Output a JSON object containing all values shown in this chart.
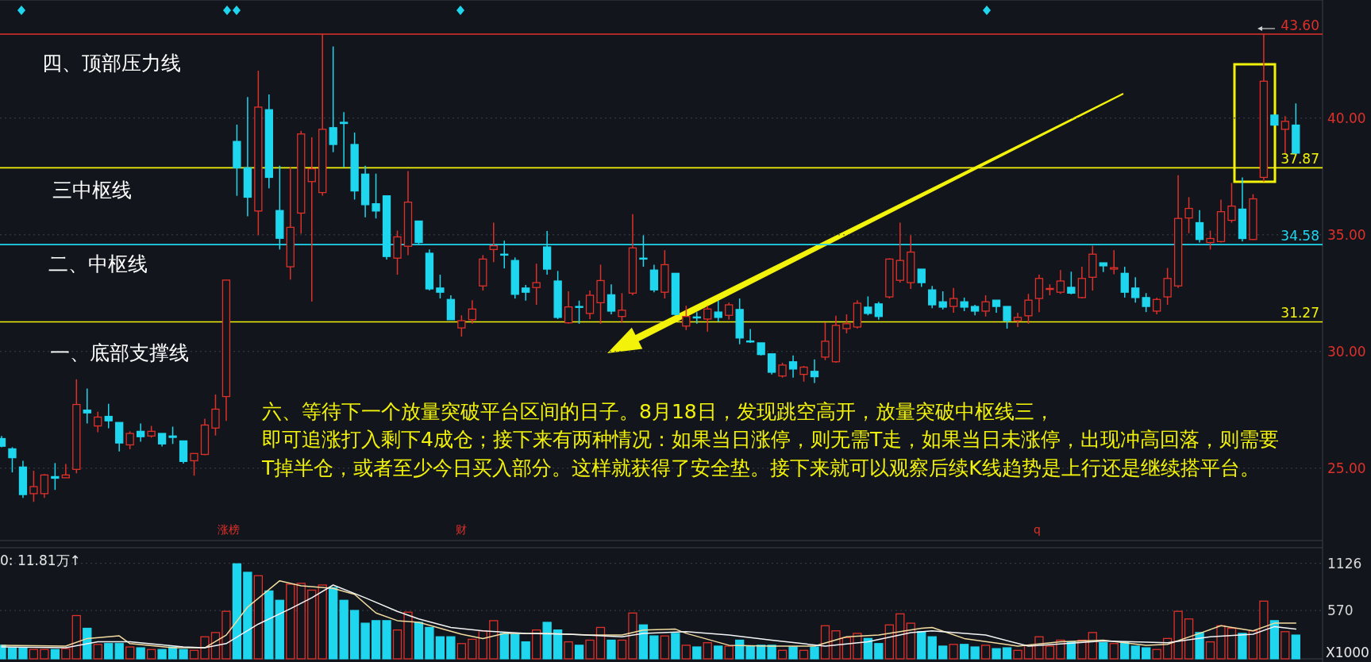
{
  "chart_data": [
    {
      "type": "candlestick",
      "categories": [
        null,
        null,
        null,
        null,
        null,
        null,
        null,
        null,
        null,
        null,
        null,
        null,
        null,
        null,
        null,
        null,
        null,
        null,
        null,
        null,
        null,
        null,
        null,
        null,
        null,
        null,
        null,
        null,
        null,
        null,
        null,
        null,
        null,
        null,
        null,
        null,
        null,
        null,
        null,
        null,
        null,
        null,
        null,
        null,
        null,
        null,
        null,
        null,
        null,
        null,
        null,
        null,
        null,
        null,
        null,
        null,
        null,
        null,
        null,
        null,
        null,
        null,
        null,
        null,
        null,
        null,
        null,
        null,
        null,
        null,
        null,
        null,
        null,
        null,
        null,
        null,
        null,
        null,
        null,
        null,
        null,
        null,
        null,
        null,
        null,
        null,
        null,
        null,
        null,
        null,
        null,
        null,
        null,
        null,
        null,
        null,
        null,
        null,
        null,
        null,
        null,
        null,
        null,
        null,
        null,
        null,
        null,
        null,
        null,
        null,
        null,
        null,
        null,
        null,
        null,
        null,
        null,
        null,
        null,
        null,
        null,
        null
      ],
      "ohlc": [
        [
          26.27,
          26.38,
          25.9,
          25.94
        ],
        [
          25.83,
          25.9,
          24.82,
          25.45
        ],
        [
          25.05,
          25.32,
          23.73,
          23.87
        ],
        [
          23.91,
          24.89,
          23.56,
          24.21
        ],
        [
          23.91,
          24.75,
          23.73,
          24.71
        ],
        [
          24.64,
          25.22,
          24.07,
          24.57
        ],
        [
          24.59,
          25.18,
          24.59,
          24.71
        ],
        [
          24.95,
          28.81,
          24.78,
          27.73
        ],
        [
          27.49,
          28.41,
          26.92,
          27.37
        ],
        [
          26.81,
          27.42,
          26.54,
          27.19
        ],
        [
          27.22,
          27.76,
          26.71,
          27.03
        ],
        [
          26.96,
          26.96,
          25.72,
          26.08
        ],
        [
          26.0,
          26.58,
          25.81,
          26.49
        ],
        [
          26.58,
          26.92,
          26.13,
          26.35
        ],
        [
          26.38,
          26.81,
          26.31,
          26.58
        ],
        [
          26.49,
          26.49,
          25.93,
          26.04
        ],
        [
          26.38,
          26.78,
          26.04,
          26.32
        ],
        [
          26.17,
          26.17,
          25.2,
          25.29
        ],
        [
          25.32,
          25.63,
          24.68,
          25.63
        ],
        [
          25.59,
          27.12,
          25.56,
          26.85
        ],
        [
          26.72,
          28.16,
          26.4,
          27.53
        ],
        [
          28.07,
          33.06,
          27.03,
          33.06
        ],
        [
          39.0,
          39.72,
          36.67,
          37.87
        ],
        [
          37.87,
          40.9,
          35.79,
          36.61
        ],
        [
          36.02,
          42.03,
          34.98,
          40.47
        ],
        [
          40.36,
          41.01,
          36.99,
          37.46
        ],
        [
          36.04,
          37.96,
          34.37,
          34.85
        ],
        [
          33.63,
          37.9,
          33.08,
          35.32
        ],
        [
          35.93,
          39.45,
          35.05,
          39.32
        ],
        [
          37.28,
          39.18,
          32.14,
          37.83
        ],
        [
          36.81,
          43.6,
          36.68,
          39.52
        ],
        [
          39.59,
          43.07,
          38.54,
          38.87
        ],
        [
          39.82,
          40.26,
          37.89,
          39.77
        ],
        [
          38.87,
          39.38,
          36.51,
          36.88
        ],
        [
          37.6,
          37.96,
          35.75,
          36.29
        ],
        [
          36.33,
          37.62,
          35.7,
          36.02
        ],
        [
          36.67,
          36.67,
          33.94,
          34.07
        ],
        [
          34.0,
          35.18,
          33.29,
          34.91
        ],
        [
          34.51,
          37.73,
          34.13,
          36.4
        ],
        [
          35.59,
          35.59,
          34.6,
          34.67
        ],
        [
          34.21,
          34.37,
          32.61,
          32.68
        ],
        [
          32.72,
          33.29,
          32.27,
          32.54
        ],
        [
          32.23,
          32.41,
          31.36,
          31.36
        ],
        [
          31.01,
          31.55,
          30.64,
          31.32
        ],
        [
          31.36,
          32.2,
          31.19,
          31.82
        ],
        [
          32.81,
          34.13,
          32.61,
          33.96
        ],
        [
          34.37,
          35.52,
          33.83,
          34.53
        ],
        [
          34.17,
          34.75,
          33.56,
          34.15
        ],
        [
          33.9,
          34.03,
          32.27,
          32.45
        ],
        [
          32.72,
          32.85,
          32.18,
          32.54
        ],
        [
          32.74,
          33.76,
          32.0,
          32.95
        ],
        [
          34.48,
          35.16,
          33.29,
          33.53
        ],
        [
          33.02,
          33.45,
          31.39,
          31.46
        ],
        [
          31.23,
          32.58,
          31.19,
          31.91
        ],
        [
          31.93,
          32.18,
          31.19,
          31.9
        ],
        [
          31.63,
          32.61,
          31.39,
          32.41
        ],
        [
          32.09,
          33.72,
          31.19,
          33.04
        ],
        [
          32.43,
          32.88,
          31.59,
          31.73
        ],
        [
          31.5,
          32.5,
          31.23,
          31.77
        ],
        [
          32.5,
          35.89,
          32.41,
          34.44
        ],
        [
          34.0,
          34.98,
          33.63,
          33.97
        ],
        [
          33.49,
          33.72,
          32.54,
          32.64
        ],
        [
          32.54,
          34.34,
          32.27,
          33.72
        ],
        [
          33.35,
          33.35,
          31.55,
          31.59
        ],
        [
          31.09,
          31.96,
          30.92,
          31.5
        ],
        [
          31.48,
          31.69,
          31.19,
          31.46
        ],
        [
          31.39,
          31.96,
          30.85,
          31.82
        ],
        [
          31.69,
          32.18,
          31.28,
          31.46
        ],
        [
          31.55,
          32.09,
          31.36,
          32.0
        ],
        [
          31.8,
          32.27,
          30.31,
          30.58
        ],
        [
          30.45,
          30.96,
          30.37,
          30.43
        ],
        [
          30.37,
          30.37,
          29.83,
          29.87
        ],
        [
          29.9,
          29.9,
          29.02,
          29.11
        ],
        [
          28.95,
          29.52,
          28.88,
          29.42
        ],
        [
          29.56,
          29.83,
          28.88,
          29.25
        ],
        [
          29.02,
          29.38,
          28.71,
          29.33
        ],
        [
          29.15,
          29.66,
          28.65,
          28.92
        ],
        [
          29.76,
          31.25,
          29.63,
          30.44
        ],
        [
          29.56,
          31.53,
          29.52,
          31.12
        ],
        [
          30.98,
          31.59,
          30.78,
          31.19
        ],
        [
          31.05,
          32.2,
          30.98,
          32.07
        ],
        [
          31.9,
          32.36,
          31.55,
          31.63
        ],
        [
          32.04,
          32.13,
          31.36,
          31.5
        ],
        [
          32.34,
          33.99,
          32.27,
          33.96
        ],
        [
          33.05,
          35.52,
          32.95,
          33.9
        ],
        [
          32.95,
          34.98,
          32.68,
          34.26
        ],
        [
          33.53,
          33.53,
          32.77,
          32.95
        ],
        [
          32.64,
          32.81,
          31.86,
          32.0
        ],
        [
          32.13,
          32.58,
          31.8,
          31.9
        ],
        [
          31.93,
          32.72,
          31.66,
          32.27
        ],
        [
          32.13,
          32.31,
          31.73,
          31.9
        ],
        [
          31.93,
          32.0,
          31.55,
          31.73
        ],
        [
          31.73,
          32.41,
          31.5,
          32.13
        ],
        [
          32.2,
          32.2,
          31.66,
          31.93
        ],
        [
          31.93,
          31.93,
          30.98,
          31.32
        ],
        [
          31.32,
          31.66,
          31.05,
          31.46
        ],
        [
          31.53,
          32.47,
          31.19,
          32.2
        ],
        [
          32.27,
          33.29,
          31.69,
          33.13
        ],
        [
          32.68,
          32.88,
          32.41,
          32.7
        ],
        [
          32.54,
          33.49,
          32.47,
          33.02
        ],
        [
          32.75,
          33.42,
          32.45,
          32.5
        ],
        [
          32.31,
          33.63,
          32.27,
          33.13
        ],
        [
          33.18,
          34.53,
          32.61,
          34.17
        ],
        [
          33.8,
          33.8,
          33.4,
          33.67
        ],
        [
          33.53,
          34.34,
          33.31,
          33.59
        ],
        [
          33.35,
          33.63,
          32.31,
          32.54
        ],
        [
          32.72,
          33.18,
          32.09,
          32.31
        ],
        [
          32.31,
          32.5,
          31.69,
          31.93
        ],
        [
          31.73,
          32.31,
          31.59,
          32.23
        ],
        [
          32.34,
          33.58,
          32.0,
          33.13
        ],
        [
          32.81,
          37.55,
          32.72,
          35.7
        ],
        [
          35.72,
          36.61,
          35.07,
          36.13
        ],
        [
          35.52,
          36.06,
          34.67,
          34.8
        ],
        [
          34.67,
          35.18,
          34.37,
          34.84
        ],
        [
          34.71,
          36.51,
          34.67,
          35.99
        ],
        [
          35.62,
          37.22,
          35.52,
          36.23
        ],
        [
          36.1,
          37.46,
          34.71,
          34.84
        ],
        [
          34.8,
          36.74,
          34.78,
          36.54
        ],
        [
          37.46,
          43.6,
          37.28,
          41.58
        ],
        [
          40.13,
          40.13,
          39.7,
          39.7
        ],
        [
          39.52,
          40.09,
          38.5,
          39.86
        ],
        [
          39.7,
          40.63,
          38.46,
          38.5
        ]
      ],
      "ylim": [
        21.9,
        45.06
      ],
      "yticks": [
        {
          "value": 25,
          "label": "25.00"
        },
        {
          "value": 30,
          "label": "30.00"
        },
        {
          "value": 35,
          "label": "35.00"
        },
        {
          "value": 40,
          "label": "40.00"
        }
      ],
      "grid": "y",
      "tick_labels": "y",
      "ref_lines": [
        {
          "axis": "y",
          "value": 43.6,
          "label": "43.60",
          "color": "#e0302a"
        },
        {
          "axis": "y",
          "value": 37.87,
          "label": "37.87",
          "color": "#f2f20a"
        },
        {
          "axis": "y",
          "value": 34.58,
          "label": "34.58",
          "color": "#1fd6ef"
        },
        {
          "axis": "y",
          "value": 31.27,
          "label": "31.27",
          "color": "#f2f20a"
        }
      ],
      "annotations": [
        "四、顶部压力线",
        "三中枢线",
        "二、中枢线",
        "一、底部支撑线",
        "六、等待下一个放量突破平台区间的日子。8月18日，发现跳空高开，放量突破中枢线三，",
        "即可追涨打入剩下4成仓；接下来有两种情况：如果当日涨停，则无需T走，如果当日未涨停，出现冲高回落，则需要",
        "T掉半仓，或者至少今日买入部分。这样就获得了安全垫。接下来就可以观察后续K线趋势是上行还是继续搭平台。",
        "涨榜",
        "财",
        "q"
      ]
    },
    {
      "type": "bar",
      "title": "0: 11.81万↑",
      "ylabel": "X1000",
      "categories": [
        null,
        null,
        null,
        null,
        null,
        null,
        null,
        null,
        null,
        null,
        null,
        null,
        null,
        null,
        null,
        null,
        null,
        null,
        null,
        null,
        null,
        null,
        null,
        null,
        null,
        null,
        null,
        null,
        null,
        null,
        null,
        null,
        null,
        null,
        null,
        null,
        null,
        null,
        null,
        null,
        null,
        null,
        null,
        null,
        null,
        null,
        null,
        null,
        null,
        null,
        null,
        null,
        null,
        null,
        null,
        null,
        null,
        null,
        null,
        null,
        null,
        null,
        null,
        null,
        null,
        null,
        null,
        null,
        null,
        null,
        null,
        null,
        null,
        null,
        null,
        null,
        null,
        null,
        null,
        null,
        null,
        null,
        null,
        null,
        null,
        null,
        null,
        null,
        null,
        null,
        null,
        null,
        null,
        null,
        null,
        null,
        null,
        null,
        null,
        null,
        null,
        null,
        null,
        null,
        null,
        null,
        null,
        null,
        null,
        null,
        null,
        null,
        null,
        null,
        null,
        null,
        null,
        null,
        null,
        null,
        null,
        null
      ],
      "series": [
        {
          "values": [
            160,
            130,
            130,
            110,
            110,
            110,
            120,
            510,
            360,
            170,
            180,
            180,
            140,
            130,
            110,
            110,
            140,
            110,
            100,
            260,
            310,
            560,
            1120,
            1020,
            980,
            800,
            690,
            880,
            890,
            810,
            870,
            840,
            690,
            570,
            420,
            450,
            450,
            340,
            550,
            430,
            370,
            260,
            260,
            180,
            230,
            330,
            450,
            300,
            290,
            200,
            340,
            430,
            340,
            200,
            160,
            220,
            370,
            220,
            220,
            540,
            400,
            270,
            270,
            300,
            160,
            140,
            190,
            150,
            150,
            220,
            150,
            160,
            160,
            100,
            140,
            100,
            140,
            390,
            330,
            250,
            300,
            240,
            180,
            400,
            530,
            420,
            320,
            260,
            150,
            170,
            170,
            140,
            160,
            120,
            130,
            100,
            160,
            260,
            150,
            220,
            200,
            220,
            310,
            190,
            180,
            200,
            150,
            130,
            110,
            240,
            560,
            470,
            310,
            200,
            390,
            360,
            300,
            330,
            680,
            450,
            320,
            280
          ],
          "colors": [
            "#1fd6ef",
            "#1fd6ef",
            "#1fd6ef",
            "#e0302a",
            "#e0302a",
            "#1fd6ef",
            "#e0302a",
            "#e0302a",
            "#1fd6ef",
            "#e0302a",
            "#1fd6ef",
            "#1fd6ef",
            "#e0302a",
            "#1fd6ef",
            "#e0302a",
            "#1fd6ef",
            "#1fd6ef",
            "#1fd6ef",
            "#e0302a",
            "#e0302a",
            "#e0302a",
            "#e0302a",
            "#1fd6ef",
            "#1fd6ef",
            "#e0302a",
            "#1fd6ef",
            "#1fd6ef",
            "#e0302a",
            "#e0302a",
            "#e0302a",
            "#e0302a",
            "#1fd6ef",
            "#1fd6ef",
            "#1fd6ef",
            "#1fd6ef",
            "#1fd6ef",
            "#1fd6ef",
            "#e0302a",
            "#e0302a",
            "#1fd6ef",
            "#1fd6ef",
            "#1fd6ef",
            "#1fd6ef",
            "#e0302a",
            "#e0302a",
            "#e0302a",
            "#e0302a",
            "#1fd6ef",
            "#1fd6ef",
            "#1fd6ef",
            "#e0302a",
            "#1fd6ef",
            "#1fd6ef",
            "#e0302a",
            "#1fd6ef",
            "#e0302a",
            "#e0302a",
            "#1fd6ef",
            "#e0302a",
            "#e0302a",
            "#1fd6ef",
            "#1fd6ef",
            "#e0302a",
            "#1fd6ef",
            "#e0302a",
            "#1fd6ef",
            "#e0302a",
            "#1fd6ef",
            "#e0302a",
            "#1fd6ef",
            "#1fd6ef",
            "#1fd6ef",
            "#1fd6ef",
            "#e0302a",
            "#1fd6ef",
            "#e0302a",
            "#1fd6ef",
            "#e0302a",
            "#e0302a",
            "#e0302a",
            "#e0302a",
            "#1fd6ef",
            "#1fd6ef",
            "#e0302a",
            "#e0302a",
            "#e0302a",
            "#1fd6ef",
            "#1fd6ef",
            "#1fd6ef",
            "#e0302a",
            "#1fd6ef",
            "#1fd6ef",
            "#e0302a",
            "#1fd6ef",
            "#1fd6ef",
            "#e0302a",
            "#e0302a",
            "#e0302a",
            "#e0302a",
            "#e0302a",
            "#1fd6ef",
            "#e0302a",
            "#e0302a",
            "#1fd6ef",
            "#e0302a",
            "#1fd6ef",
            "#1fd6ef",
            "#1fd6ef",
            "#e0302a",
            "#e0302a",
            "#e0302a",
            "#e0302a",
            "#1fd6ef",
            "#e0302a",
            "#e0302a",
            "#e0302a",
            "#1fd6ef",
            "#e0302a",
            "#e0302a",
            "#1fd6ef",
            "#e0302a",
            "#1fd6ef"
          ]
        },
        {
          "type": "line",
          "color": "#f3dca0",
          "values": [
            160,
            null,
            null,
            null,
            null,
            null,
            150,
            null,
            240,
            null,
            null,
            270,
            180,
            null,
            null,
            null,
            130,
            null,
            null,
            130,
            null,
            280,
            null,
            610,
            null,
            null,
            920,
            null,
            860,
            null,
            null,
            830,
            null,
            760,
            null,
            540,
            null,
            450,
            null,
            430,
            null,
            null,
            null,
            290,
            null,
            240,
            null,
            300,
            null,
            null,
            null,
            300,
            null,
            null,
            null,
            280,
            null,
            null,
            280,
            null,
            340,
            null,
            null,
            350,
            300,
            null,
            null,
            null,
            160,
            null,
            null,
            null,
            150,
            null,
            null,
            null,
            150,
            null,
            null,
            260,
            null,
            null,
            280,
            null,
            null,
            null,
            360,
            370,
            null,
            null,
            240,
            null,
            null,
            null,
            null,
            150,
            null,
            null,
            null,
            200,
            null,
            null,
            null,
            220,
            null,
            null,
            null,
            160,
            null,
            170,
            null,
            null,
            300,
            null,
            390,
            null,
            null,
            330,
            null,
            420,
            null,
            420
          ]
        },
        {
          "type": "line",
          "color": "#f4f4f4",
          "values": [
            140,
            null,
            null,
            null,
            null,
            null,
            130,
            null,
            null,
            200,
            null,
            null,
            200,
            null,
            null,
            null,
            null,
            140,
            null,
            130,
            null,
            180,
            null,
            null,
            410,
            null,
            null,
            590,
            null,
            720,
            null,
            870,
            null,
            null,
            720,
            null,
            null,
            560,
            null,
            470,
            null,
            null,
            370,
            null,
            null,
            330,
            null,
            null,
            null,
            300,
            null,
            null,
            null,
            290,
            null,
            null,
            null,
            null,
            260,
            null,
            300,
            null,
            null,
            null,
            320,
            null,
            null,
            null,
            280,
            null,
            null,
            null,
            220,
            null,
            null,
            null,
            null,
            150,
            null,
            null,
            null,
            200,
            null,
            null,
            null,
            310,
            null,
            330,
            null,
            null,
            null,
            null,
            280,
            null,
            null,
            null,
            150,
            null,
            null,
            null,
            null,
            null,
            null,
            210,
            null,
            null,
            null,
            null,
            null,
            190,
            null,
            null,
            null,
            260,
            null,
            null,
            null,
            290,
            null,
            380,
            null,
            350
          ]
        }
      ],
      "ylim": [
        0,
        1310
      ],
      "yticks": [
        570,
        1126
      ],
      "grid": "y",
      "tick_labels": "y"
    }
  ]
}
